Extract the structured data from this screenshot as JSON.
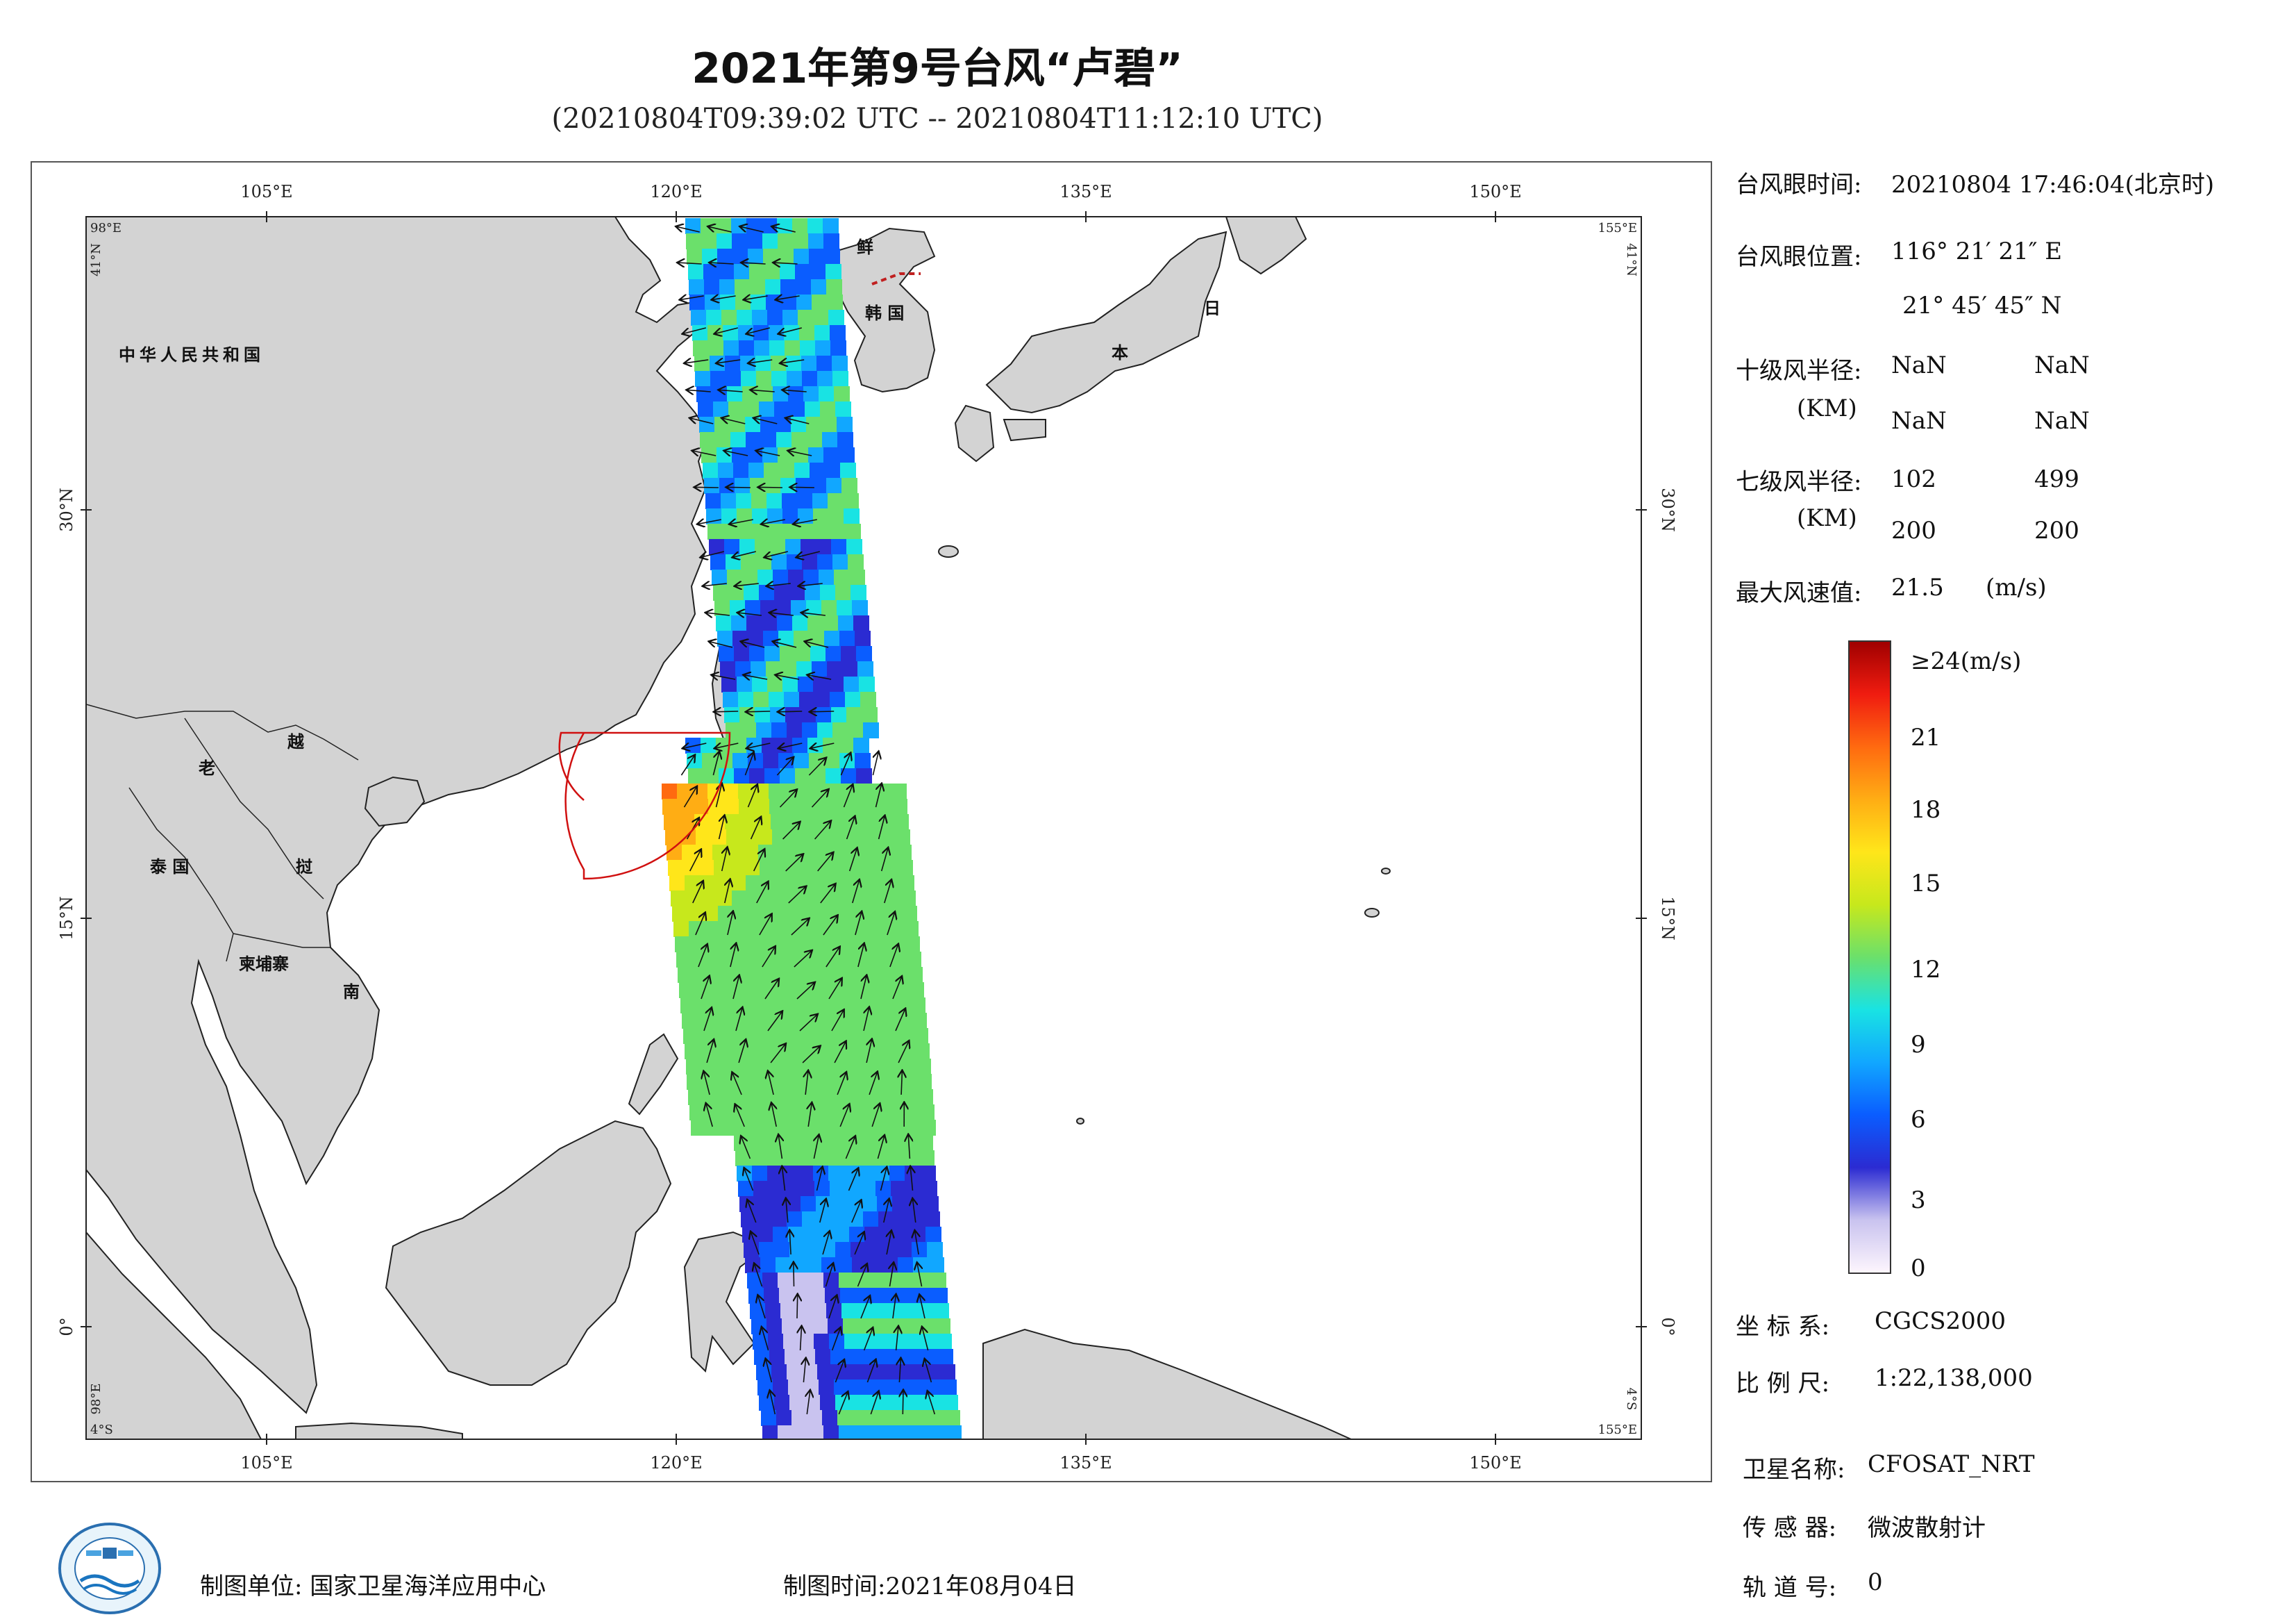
{
  "title": "2021年第9号台风“卢碧”",
  "subtitle": "(20210804T09:39:02 UTC -- 20210804T11:12:10 UTC)",
  "map": {
    "lon_ticks": [
      "105°E",
      "120°E",
      "135°E",
      "150°E"
    ],
    "lat_ticks": [
      "30°N",
      "15°N",
      "0°"
    ],
    "corner_tl": "98°E",
    "corner_tl_lat": "41°N",
    "corner_tr": "155°E",
    "corner_tr_lat": "41°N",
    "corner_bl": "4°S",
    "corner_bl_lon": "98°E",
    "corner_br": "155°E",
    "corner_br_lat": "4°S",
    "land_color": "#d3d3d3",
    "ocean_color": "#ffffff",
    "labels": {
      "china": "中华人民共和国",
      "laos": "老",
      "vietnam_1": "越",
      "thailand": "泰 国",
      "vietnam_2": "挝",
      "cambodia": "柬埔寨",
      "vietnam_3": "南",
      "nk": "鲜",
      "sk": "韩 国",
      "japan_1": "日",
      "japan_2": "本"
    }
  },
  "info": {
    "eye_time_label": "台风眼时间:",
    "eye_time_value": "20210804 17:46:04(北京时)",
    "eye_pos_label": "台风眼位置:",
    "eye_lon": "116° 21′ 21″ E",
    "eye_lat": "21° 45′ 45″ N",
    "r10_label": "十级风半径:",
    "r10_unit": "(KM)",
    "r10_values": [
      "NaN",
      "NaN",
      "NaN",
      "NaN"
    ],
    "r7_label": "七级风半径:",
    "r7_unit": "(KM)",
    "r7_values": [
      "102",
      "499",
      "200",
      "200"
    ],
    "max_wind_label": "最大风速值:",
    "max_wind_value": "21.5",
    "max_wind_unit": "(m/s)"
  },
  "colorbar": {
    "top_label": "≥24(m/s)",
    "ticks": [
      "21",
      "18",
      "15",
      "12",
      "9",
      "6",
      "3",
      "0"
    ],
    "stops": [
      "#fdf5fd",
      "#c9c3ef",
      "#2b2bd2",
      "#0a5dff",
      "#11a7ff",
      "#19e3e3",
      "#6be06b",
      "#c7e81c",
      "#ffe61a",
      "#ffad14",
      "#ff6a10",
      "#f01c10",
      "#a00000"
    ]
  },
  "meta": {
    "crs_label": "坐 标 系:",
    "crs_value": "CGCS2000",
    "scale_label": "比 例 尺:",
    "scale_value": "1:22,138,000",
    "sat_label": "卫星名称:",
    "sat_value": "CFOSAT_NRT",
    "sensor_label": "传 感 器:",
    "sensor_value": "微波散射计",
    "orbit_label": "轨 道 号:",
    "orbit_value": "0"
  },
  "footer": {
    "maker": "制图单位: 国家卫星海洋应用中心",
    "date": "制图时间:2021年08月04日"
  }
}
